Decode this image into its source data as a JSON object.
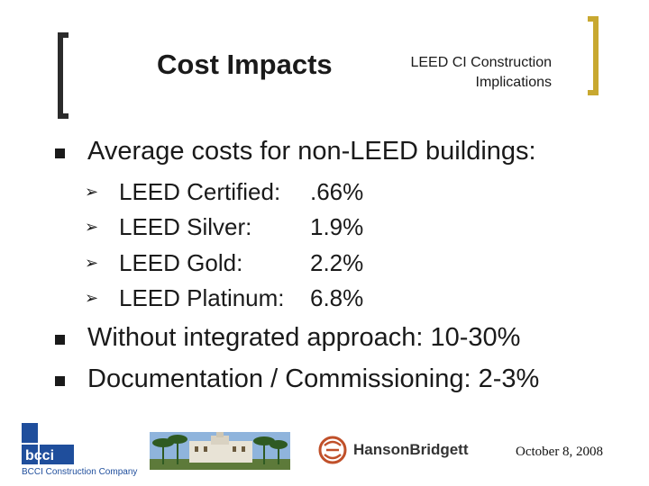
{
  "header": {
    "title": "Cost Impacts",
    "subtitle_line1": "LEED CI Construction",
    "subtitle_line2": "Implications"
  },
  "bullets": {
    "item1": "Average costs for non-LEED buildings:",
    "sub": [
      {
        "label": "LEED Certified:",
        "value": ".66%"
      },
      {
        "label": "LEED Silver:",
        "value": "1.9%"
      },
      {
        "label": "LEED Gold:",
        "value": "2.2%"
      },
      {
        "label": "LEED Platinum:",
        "value": "6.8%"
      }
    ],
    "item2": "Without integrated approach: 10-30%",
    "item3": "Documentation / Commissioning: 2-3%"
  },
  "footer": {
    "bcci_logo_text": "bcci",
    "bcci_company": "BCCI Construction Company",
    "hanson_bridgett": "HansonBridgett",
    "date": "October 8, 2008"
  },
  "colors": {
    "accent_gold": "#c8a830",
    "bcci_blue": "#1f4e9c"
  }
}
